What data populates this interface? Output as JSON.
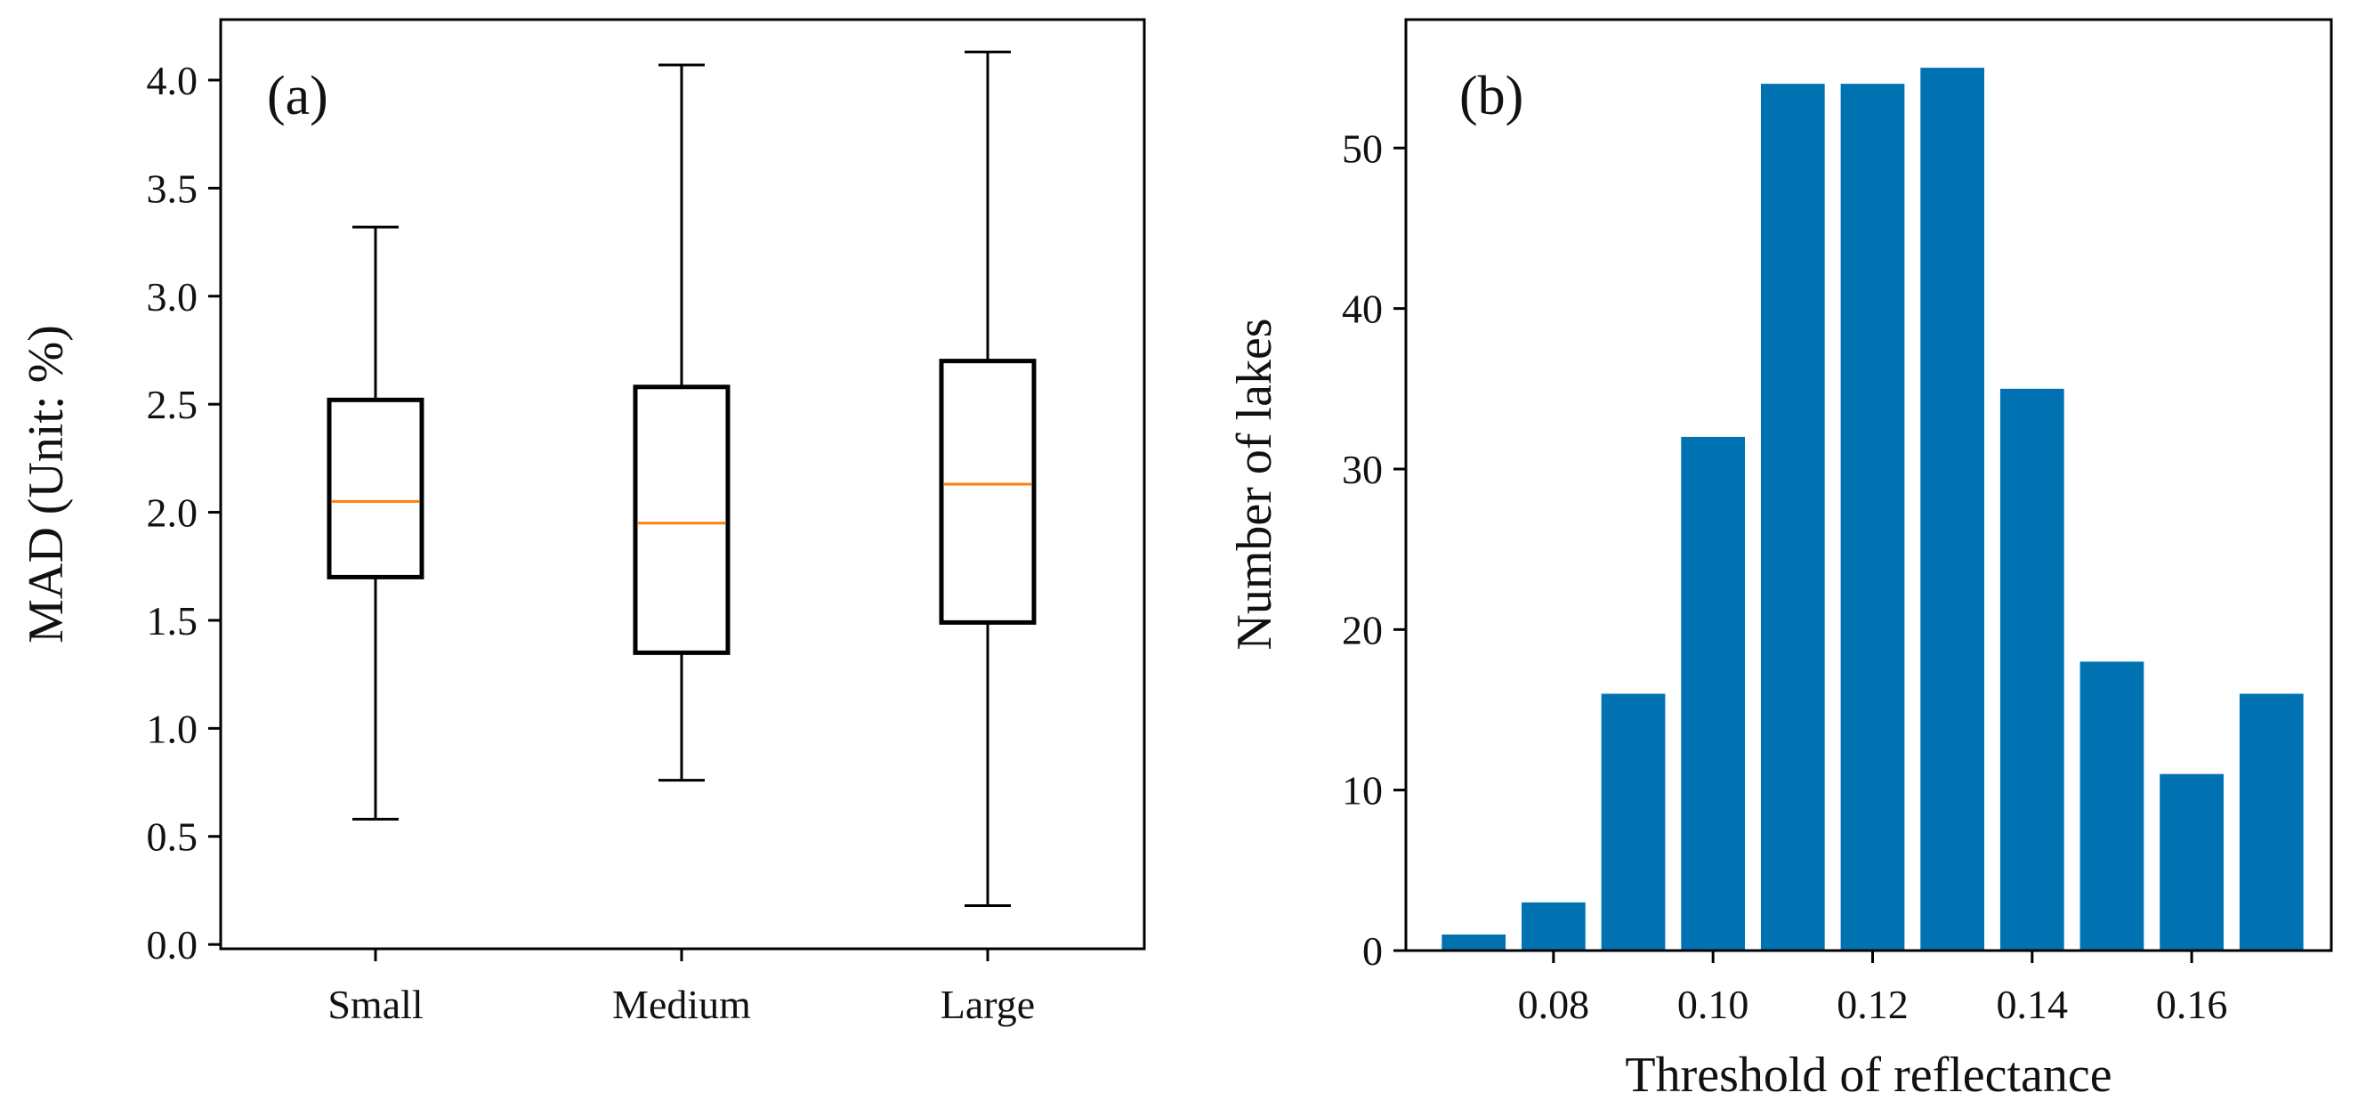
{
  "chart_data": [
    {
      "type": "box",
      "panel_label": "(a)",
      "title": "",
      "xlabel": "",
      "ylabel": "MAD (Unit: %)",
      "ylim": [
        -0.02,
        4.28
      ],
      "yticks": [
        0.0,
        0.5,
        1.0,
        1.5,
        2.0,
        2.5,
        3.0,
        3.5,
        4.0
      ],
      "ytick_labels": [
        "0.0",
        "0.5",
        "1.0",
        "1.5",
        "2.0",
        "2.5",
        "3.0",
        "3.5",
        "4.0"
      ],
      "categories": [
        "Small",
        "Medium",
        "Large"
      ],
      "boxes": [
        {
          "name": "Small",
          "whisker_low": 0.58,
          "q1": 1.7,
          "median": 2.05,
          "q3": 2.52,
          "whisker_high": 3.32
        },
        {
          "name": "Medium",
          "whisker_low": 0.76,
          "q1": 1.35,
          "median": 1.95,
          "q3": 2.58,
          "whisker_high": 4.07
        },
        {
          "name": "Large",
          "whisker_low": 0.18,
          "q1": 1.49,
          "median": 2.13,
          "q3": 2.7,
          "whisker_high": 4.13
        }
      ],
      "colors": {
        "box": "#000000",
        "median": "#ff7f0e"
      }
    },
    {
      "type": "bar",
      "panel_label": "(b)",
      "title": "",
      "xlabel": "Threshold of reflectance",
      "ylabel": "Number of lakes",
      "xlim": [
        0.0615,
        0.1775
      ],
      "ylim": [
        0,
        58
      ],
      "bar_width": 0.008,
      "x": [
        0.07,
        0.08,
        0.09,
        0.1,
        0.11,
        0.12,
        0.13,
        0.14,
        0.15,
        0.16,
        0.17
      ],
      "values": [
        1,
        3,
        16,
        32,
        54,
        54,
        55,
        35,
        18,
        11,
        16
      ],
      "xticks": [
        0.08,
        0.1,
        0.12,
        0.14,
        0.16
      ],
      "xtick_labels": [
        "0.08",
        "0.10",
        "0.12",
        "0.14",
        "0.16"
      ],
      "yticks": [
        0,
        10,
        20,
        30,
        40,
        50
      ],
      "ytick_labels": [
        "0",
        "10",
        "20",
        "30",
        "40",
        "50"
      ],
      "colors": {
        "bar": "#0072b2"
      }
    }
  ]
}
